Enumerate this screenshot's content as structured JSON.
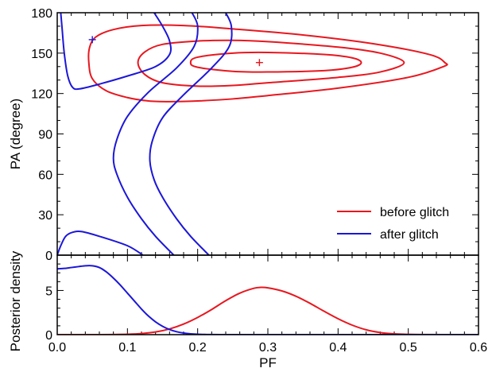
{
  "chart_data": [
    {
      "type": "line",
      "panel": "contour",
      "xlabel": "",
      "ylabel": "PA (degree)",
      "xlim": [
        0.0,
        0.6
      ],
      "ylim": [
        0,
        180
      ],
      "yticks": [
        0,
        30,
        60,
        90,
        120,
        150,
        180
      ],
      "ytick_labels": [
        "0",
        "30",
        "60",
        "90",
        "120",
        "150",
        "180"
      ],
      "legend": {
        "placement": "lower-right",
        "entries": [
          {
            "label": "before glitch",
            "color": "#e8171f"
          },
          {
            "label": "after glitch",
            "color": "#1c17d8"
          }
        ]
      },
      "markers": [
        {
          "series": "before glitch",
          "symbol": "+",
          "x": 0.288,
          "y": 143,
          "color": "#e8171f"
        },
        {
          "series": "after glitch",
          "symbol": "+",
          "x": 0.05,
          "y": 160,
          "color": "#1c17d8"
        }
      ],
      "series": [
        {
          "series": "before glitch",
          "color": "#e8171f",
          "level": "inner",
          "closed": true,
          "points": [
            [
              0.19,
              143
            ],
            [
              0.2,
              139.5
            ],
            [
              0.25,
              136.5
            ],
            [
              0.3,
              136
            ],
            [
              0.38,
              137
            ],
            [
              0.42,
              139.5
            ],
            [
              0.433,
              143
            ],
            [
              0.42,
              146.5
            ],
            [
              0.38,
              149
            ],
            [
              0.3,
              150.5
            ],
            [
              0.25,
              150
            ],
            [
              0.2,
              147
            ]
          ]
        },
        {
          "series": "before glitch",
          "color": "#e8171f",
          "level": "middle",
          "closed": true,
          "points": [
            [
              0.115,
              143
            ],
            [
              0.125,
              134
            ],
            [
              0.15,
              128
            ],
            [
              0.2,
              125.5
            ],
            [
              0.25,
              126
            ],
            [
              0.3,
              128
            ],
            [
              0.4,
              132
            ],
            [
              0.46,
              136
            ],
            [
              0.494,
              143
            ],
            [
              0.46,
              150
            ],
            [
              0.4,
              154.5
            ],
            [
              0.3,
              158.5
            ],
            [
              0.25,
              159.5
            ],
            [
              0.2,
              159
            ],
            [
              0.15,
              156.5
            ],
            [
              0.125,
              151
            ]
          ]
        },
        {
          "series": "before glitch",
          "color": "#e8171f",
          "level": "outer",
          "closed": true,
          "points": [
            [
              0.045,
              143
            ],
            [
              0.05,
              131
            ],
            [
              0.07,
              122
            ],
            [
              0.1,
              117
            ],
            [
              0.13,
              114.5
            ],
            [
              0.16,
              114
            ],
            [
              0.2,
              114.5
            ],
            [
              0.25,
              116
            ],
            [
              0.3,
              118.5
            ],
            [
              0.4,
              124
            ],
            [
              0.5,
              132
            ],
            [
              0.55,
              140
            ],
            [
              0.552,
              143
            ],
            [
              0.53,
              149
            ],
            [
              0.45,
              157
            ],
            [
              0.35,
              163.5
            ],
            [
              0.25,
              168
            ],
            [
              0.18,
              170.5
            ],
            [
              0.12,
              170.5
            ],
            [
              0.08,
              167.5
            ],
            [
              0.055,
              162
            ],
            [
              0.046,
              154
            ]
          ]
        },
        {
          "series": "after glitch",
          "color": "#1c17d8",
          "level": "inner-upper",
          "closed": false,
          "points": [
            [
              0.005,
              180
            ],
            [
              0.007,
              168
            ],
            [
              0.01,
              150
            ],
            [
              0.015,
              133
            ],
            [
              0.022,
              124.5
            ],
            [
              0.032,
              123.5
            ],
            [
              0.06,
              127
            ],
            [
              0.1,
              133
            ],
            [
              0.14,
              140
            ],
            [
              0.16,
              149
            ],
            [
              0.16,
              159
            ],
            [
              0.15,
              170
            ],
            [
              0.138,
              180
            ]
          ]
        },
        {
          "series": "after glitch",
          "color": "#1c17d8",
          "level": "inner-lower",
          "closed": false,
          "points": [
            [
              0.0,
              0
            ],
            [
              0.005,
              7
            ],
            [
              0.012,
              14
            ],
            [
              0.022,
              17
            ],
            [
              0.035,
              17.5
            ],
            [
              0.06,
              14
            ],
            [
              0.1,
              7
            ],
            [
              0.122,
              0
            ]
          ]
        },
        {
          "series": "after glitch",
          "color": "#1c17d8",
          "level": "middle",
          "closed": false,
          "points": [
            [
              0.166,
              0
            ],
            [
              0.14,
              14
            ],
            [
              0.12,
              27
            ],
            [
              0.1,
              43
            ],
            [
              0.085,
              60
            ],
            [
              0.08,
              72
            ],
            [
              0.085,
              86
            ],
            [
              0.1,
              103
            ],
            [
              0.13,
              121
            ],
            [
              0.17,
              139
            ],
            [
              0.195,
              155
            ],
            [
              0.2,
              170
            ],
            [
              0.192,
              180
            ]
          ]
        },
        {
          "series": "after glitch",
          "color": "#1c17d8",
          "level": "outer",
          "closed": false,
          "points": [
            [
              0.216,
              0
            ],
            [
              0.19,
              14
            ],
            [
              0.17,
              27
            ],
            [
              0.15,
              43
            ],
            [
              0.138,
              56
            ],
            [
              0.132,
              70
            ],
            [
              0.135,
              84
            ],
            [
              0.15,
              102
            ],
            [
              0.18,
              119
            ],
            [
              0.22,
              139
            ],
            [
              0.245,
              155
            ],
            [
              0.248,
              170
            ],
            [
              0.24,
              180
            ]
          ]
        }
      ]
    },
    {
      "type": "line",
      "panel": "posterior",
      "xlabel": "PF",
      "ylabel": "Posterior density",
      "xlim": [
        0.0,
        0.6
      ],
      "ylim": [
        0,
        9
      ],
      "xticks": [
        0.0,
        0.1,
        0.2,
        0.3,
        0.4,
        0.5,
        0.6
      ],
      "xtick_labels": [
        "0.0",
        "0.1",
        "0.2",
        "0.3",
        "0.4",
        "0.5",
        "0.6"
      ],
      "yticks": [
        0,
        5
      ],
      "ytick_labels": [
        "0",
        "5"
      ],
      "series": [
        {
          "series": "before glitch",
          "color": "#e8171f",
          "x": [
            0.0,
            0.05,
            0.08,
            0.1,
            0.12,
            0.14,
            0.16,
            0.18,
            0.2,
            0.22,
            0.24,
            0.26,
            0.28,
            0.29,
            0.3,
            0.32,
            0.34,
            0.36,
            0.38,
            0.4,
            0.42,
            0.44,
            0.46,
            0.48,
            0.5,
            0.52,
            0.55,
            0.6
          ],
          "y": [
            0.0,
            0.0,
            0.01,
            0.04,
            0.12,
            0.3,
            0.65,
            1.2,
            1.95,
            2.85,
            3.85,
            4.7,
            5.25,
            5.35,
            5.3,
            4.95,
            4.35,
            3.55,
            2.65,
            1.8,
            1.08,
            0.55,
            0.24,
            0.09,
            0.03,
            0.01,
            0.0,
            0.0
          ]
        },
        {
          "series": "after glitch",
          "color": "#1c17d8",
          "x": [
            0.0,
            0.01,
            0.02,
            0.03,
            0.04,
            0.05,
            0.06,
            0.07,
            0.08,
            0.09,
            0.1,
            0.11,
            0.12,
            0.13,
            0.14,
            0.15,
            0.16,
            0.17,
            0.18,
            0.19,
            0.2,
            0.21,
            0.22,
            0.24,
            0.26,
            0.3,
            0.4,
            0.6
          ],
          "y": [
            7.45,
            7.5,
            7.6,
            7.7,
            7.8,
            7.8,
            7.6,
            7.1,
            6.4,
            5.6,
            4.7,
            3.8,
            2.9,
            2.1,
            1.45,
            0.95,
            0.58,
            0.33,
            0.18,
            0.09,
            0.04,
            0.02,
            0.01,
            0.0,
            0.0,
            0.0,
            0.0,
            0.0
          ]
        }
      ]
    }
  ]
}
